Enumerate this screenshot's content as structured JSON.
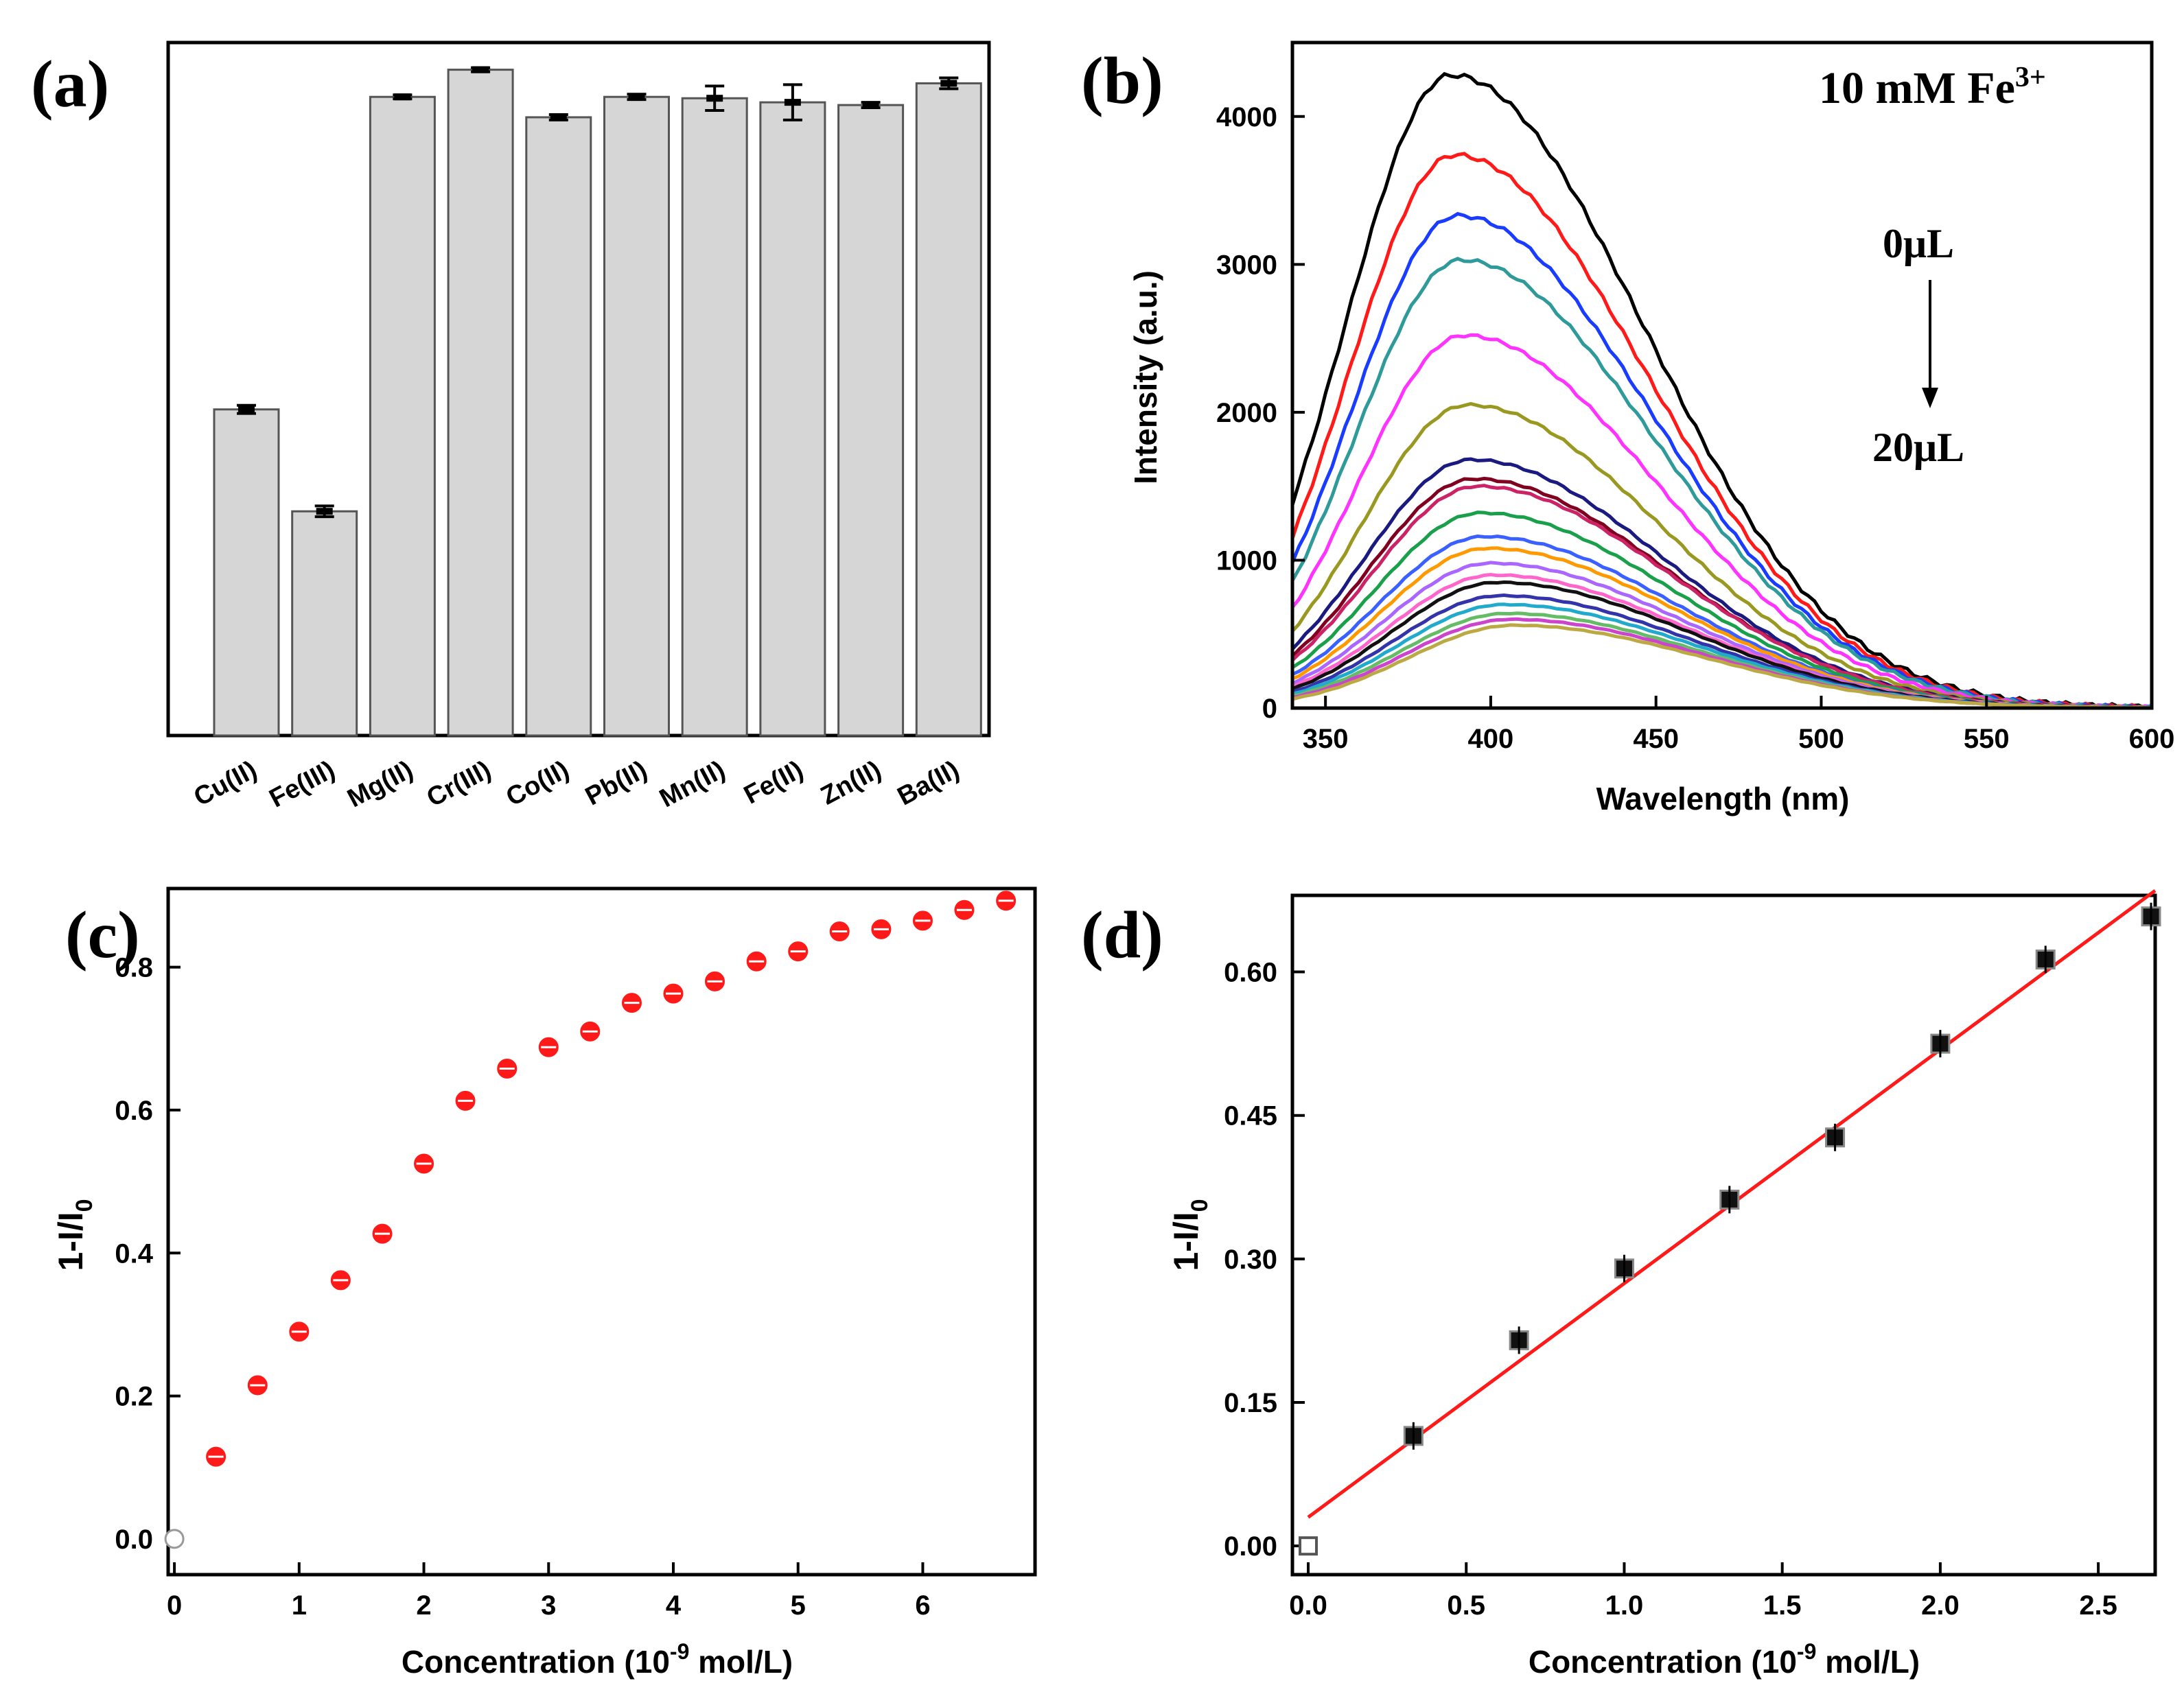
{
  "chart_data": [
    {
      "panel_label": "(a)",
      "type": "bar",
      "categories": [
        "Cu(II)",
        "Fe(III)",
        "Mg(II)",
        "Cr(III)",
        "Co(II)",
        "Pb(II)",
        "Mn(II)",
        "Fe(II)",
        "Zn(II)",
        "Ba(II)"
      ],
      "values": [
        0.48,
        0.33,
        0.94,
        0.98,
        0.91,
        0.94,
        0.938,
        0.932,
        0.928,
        0.96
      ],
      "errors": [
        0.006,
        0.008,
        0.003,
        0.003,
        0.004,
        0.004,
        0.018,
        0.026,
        0.004,
        0.008
      ],
      "ylim": [
        0,
        1.02
      ],
      "bar_color": "#d6d6d6",
      "title": "",
      "xlabel": "",
      "ylabel": ""
    },
    {
      "panel_label": "(b)",
      "type": "line",
      "annotation": "10 mM Fe",
      "annotation_sup": "3+",
      "arrow_top_label": "0μL",
      "arrow_bottom_label": "20μL",
      "xlabel": "Wavelength (nm)",
      "ylabel": "Intensity (a.u.)",
      "xlim": [
        340,
        600
      ],
      "ylim": [
        0,
        4500
      ],
      "xticks": [
        "350",
        "400",
        "450",
        "500",
        "550",
        "600"
      ],
      "yticks": [
        "0",
        "1000",
        "2000",
        "3000",
        "4000"
      ],
      "series": [
        {
          "peak_x": 388,
          "peak_y": 4280,
          "color": "#000000"
        },
        {
          "peak_x": 389,
          "peak_y": 3740,
          "color": "#ff1a1a"
        },
        {
          "peak_x": 390,
          "peak_y": 3330,
          "color": "#1a3cff"
        },
        {
          "peak_x": 391,
          "peak_y": 3030,
          "color": "#2e9a9a"
        },
        {
          "peak_x": 392,
          "peak_y": 2520,
          "color": "#ff33ff"
        },
        {
          "peak_x": 393,
          "peak_y": 2050,
          "color": "#999922"
        },
        {
          "peak_x": 394,
          "peak_y": 1680,
          "color": "#1a1a80"
        },
        {
          "peak_x": 395,
          "peak_y": 1550,
          "color": "#800020"
        },
        {
          "peak_x": 396,
          "peak_y": 1500,
          "color": "#cc2266"
        },
        {
          "peak_x": 397,
          "peak_y": 1320,
          "color": "#1aa04a"
        },
        {
          "peak_x": 398,
          "peak_y": 1160,
          "color": "#3a60ff"
        },
        {
          "peak_x": 399,
          "peak_y": 1080,
          "color": "#ff9900"
        },
        {
          "peak_x": 400,
          "peak_y": 980,
          "color": "#aa66ff"
        },
        {
          "peak_x": 401,
          "peak_y": 900,
          "color": "#ff66cc"
        },
        {
          "peak_x": 402,
          "peak_y": 850,
          "color": "#111111"
        },
        {
          "peak_x": 403,
          "peak_y": 760,
          "color": "#3333aa"
        },
        {
          "peak_x": 404,
          "peak_y": 700,
          "color": "#22aacc"
        },
        {
          "peak_x": 405,
          "peak_y": 640,
          "color": "#66bb66"
        },
        {
          "peak_x": 406,
          "peak_y": 600,
          "color": "#cc44cc"
        },
        {
          "peak_x": 407,
          "peak_y": 560,
          "color": "#bbaa44"
        }
      ]
    },
    {
      "panel_label": "(c)",
      "type": "scatter",
      "xlabel_main": "Concentration (10",
      "xlabel_sup": "-9",
      "xlabel_end": " mol/L)",
      "ylabel_main": "1-I/I",
      "ylabel_sub": "0",
      "xlim": [
        -0.05,
        6.9
      ],
      "ylim": [
        -0.05,
        0.91
      ],
      "xticks": [
        "0",
        "1",
        "2",
        "3",
        "4",
        "5",
        "6"
      ],
      "yticks": [
        "0.0",
        "0.2",
        "0.4",
        "0.6",
        "0.8"
      ],
      "x": [
        0,
        0.333,
        0.667,
        1.0,
        1.333,
        1.667,
        2.0,
        2.333,
        2.667,
        3.0,
        3.333,
        3.667,
        4.0,
        4.333,
        4.667,
        5.0,
        5.333,
        5.667,
        6.0,
        6.333,
        6.667
      ],
      "y": [
        0.0,
        0.115,
        0.215,
        0.29,
        0.362,
        0.427,
        0.525,
        0.613,
        0.658,
        0.688,
        0.71,
        0.75,
        0.763,
        0.78,
        0.808,
        0.822,
        0.85,
        0.853,
        0.865,
        0.88,
        0.893
      ],
      "point_color": "#ff1a1a",
      "first_point_color": "#ffffff"
    },
    {
      "panel_label": "(d)",
      "type": "scatter",
      "xlabel_main": "Concentration (10",
      "xlabel_sup": "-9",
      "xlabel_end": " mol/L)",
      "ylabel_main": "1-I/I",
      "ylabel_sub": "0",
      "xlim": [
        -0.05,
        2.68
      ],
      "ylim": [
        -0.03,
        0.68
      ],
      "xticks": [
        "0.0",
        "0.5",
        "1.0",
        "1.5",
        "2.0",
        "2.5"
      ],
      "yticks": [
        "0.00",
        "0.15",
        "0.30",
        "0.45",
        "0.60"
      ],
      "x": [
        0,
        0.333,
        0.667,
        1.0,
        1.333,
        1.667,
        2.0,
        2.333,
        2.667
      ],
      "y": [
        0.0,
        0.115,
        0.215,
        0.29,
        0.362,
        0.427,
        0.525,
        0.613,
        0.658
      ],
      "fit_line": {
        "x": [
          0,
          2.68
        ],
        "y": [
          0.03,
          0.685
        ],
        "color": "#ff1a1a"
      }
    }
  ]
}
